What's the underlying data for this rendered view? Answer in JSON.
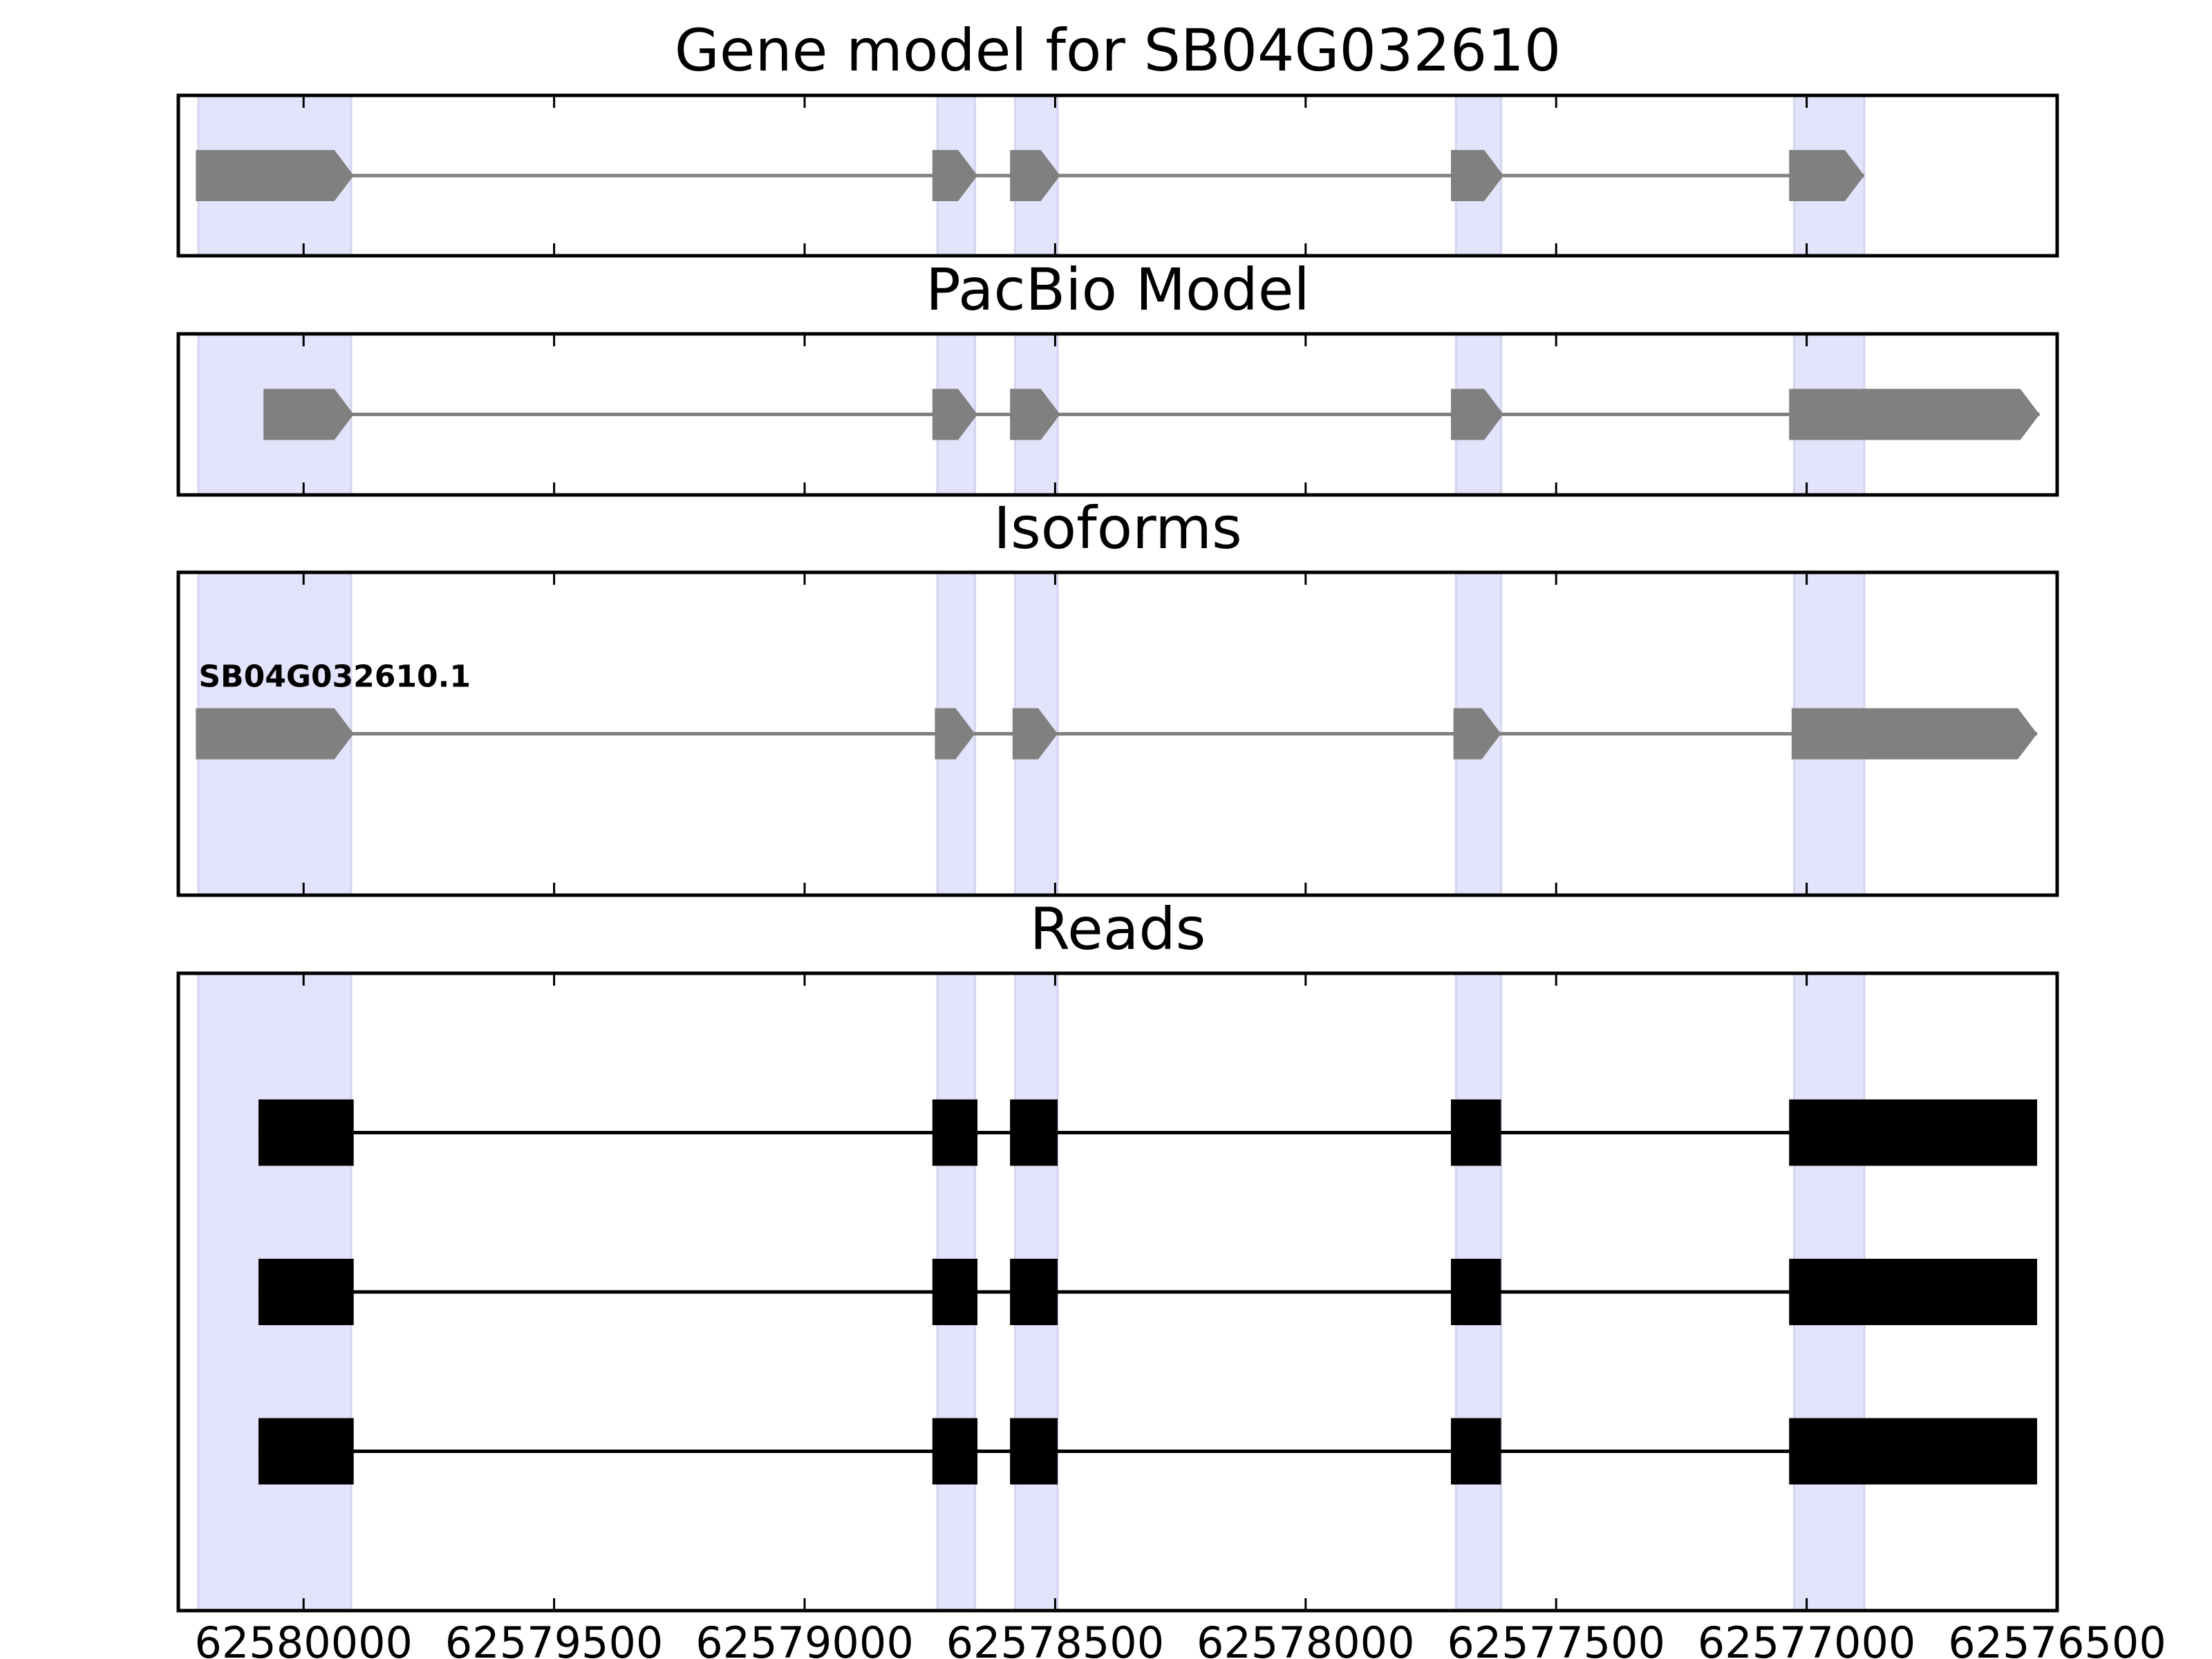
{
  "chart_data": {
    "type": "gene_structure",
    "axis": {
      "orientation": "reversed",
      "xlim": [
        62580250,
        62576500
      ],
      "ticks": [
        62580000,
        62579500,
        62579000,
        62578500,
        62578000,
        62577500,
        62577000,
        62576500
      ],
      "tick_labels": [
        "62580000",
        "62579500",
        "62579000",
        "62578500",
        "62578000",
        "62577500",
        "62577000",
        "62576500"
      ]
    },
    "highlight_regions": [
      [
        62580210,
        62579905
      ],
      [
        62578735,
        62578660
      ],
      [
        62578580,
        62578495
      ],
      [
        62577700,
        62577610
      ],
      [
        62577025,
        62576885
      ]
    ],
    "panels": [
      {
        "title": "Gene model for SB04G032610",
        "color": "#808080",
        "style": "arrow",
        "tracks": [
          {
            "label": "",
            "exons": [
              [
                62580215,
                62579900
              ],
              [
                62578745,
                62578655
              ],
              [
                62578590,
                62578490
              ],
              [
                62577710,
                62577605
              ],
              [
                62577035,
                62576885
              ]
            ]
          }
        ]
      },
      {
        "title": "PacBio Model",
        "color": "#808080",
        "style": "arrow",
        "tracks": [
          {
            "label": "",
            "exons": [
              [
                62580080,
                62579900
              ],
              [
                62578745,
                62578655
              ],
              [
                62578590,
                62578490
              ],
              [
                62577710,
                62577605
              ],
              [
                62577035,
                62576535
              ]
            ]
          }
        ]
      },
      {
        "title": "Isoforms",
        "color": "#808080",
        "style": "arrow",
        "tracks": [
          {
            "label": "SB04G032610.1",
            "exons": [
              [
                62580215,
                62579900
              ],
              [
                62578740,
                62578660
              ],
              [
                62578585,
                62578495
              ],
              [
                62577705,
                62577610
              ],
              [
                62577030,
                62576540
              ]
            ]
          }
        ]
      },
      {
        "title": "Reads",
        "color": "#000000",
        "style": "block",
        "tracks": [
          {
            "label": "",
            "exons": [
              [
                62580090,
                62579900
              ],
              [
                62578745,
                62578655
              ],
              [
                62578590,
                62578495
              ],
              [
                62577710,
                62577610
              ],
              [
                62577035,
                62576540
              ]
            ]
          },
          {
            "label": "",
            "exons": [
              [
                62580090,
                62579900
              ],
              [
                62578745,
                62578655
              ],
              [
                62578590,
                62578495
              ],
              [
                62577710,
                62577610
              ],
              [
                62577035,
                62576540
              ]
            ]
          },
          {
            "label": "",
            "exons": [
              [
                62580090,
                62579900
              ],
              [
                62578745,
                62578655
              ],
              [
                62578590,
                62578495
              ],
              [
                62577710,
                62577610
              ],
              [
                62577035,
                62576540
              ]
            ]
          }
        ]
      }
    ]
  }
}
